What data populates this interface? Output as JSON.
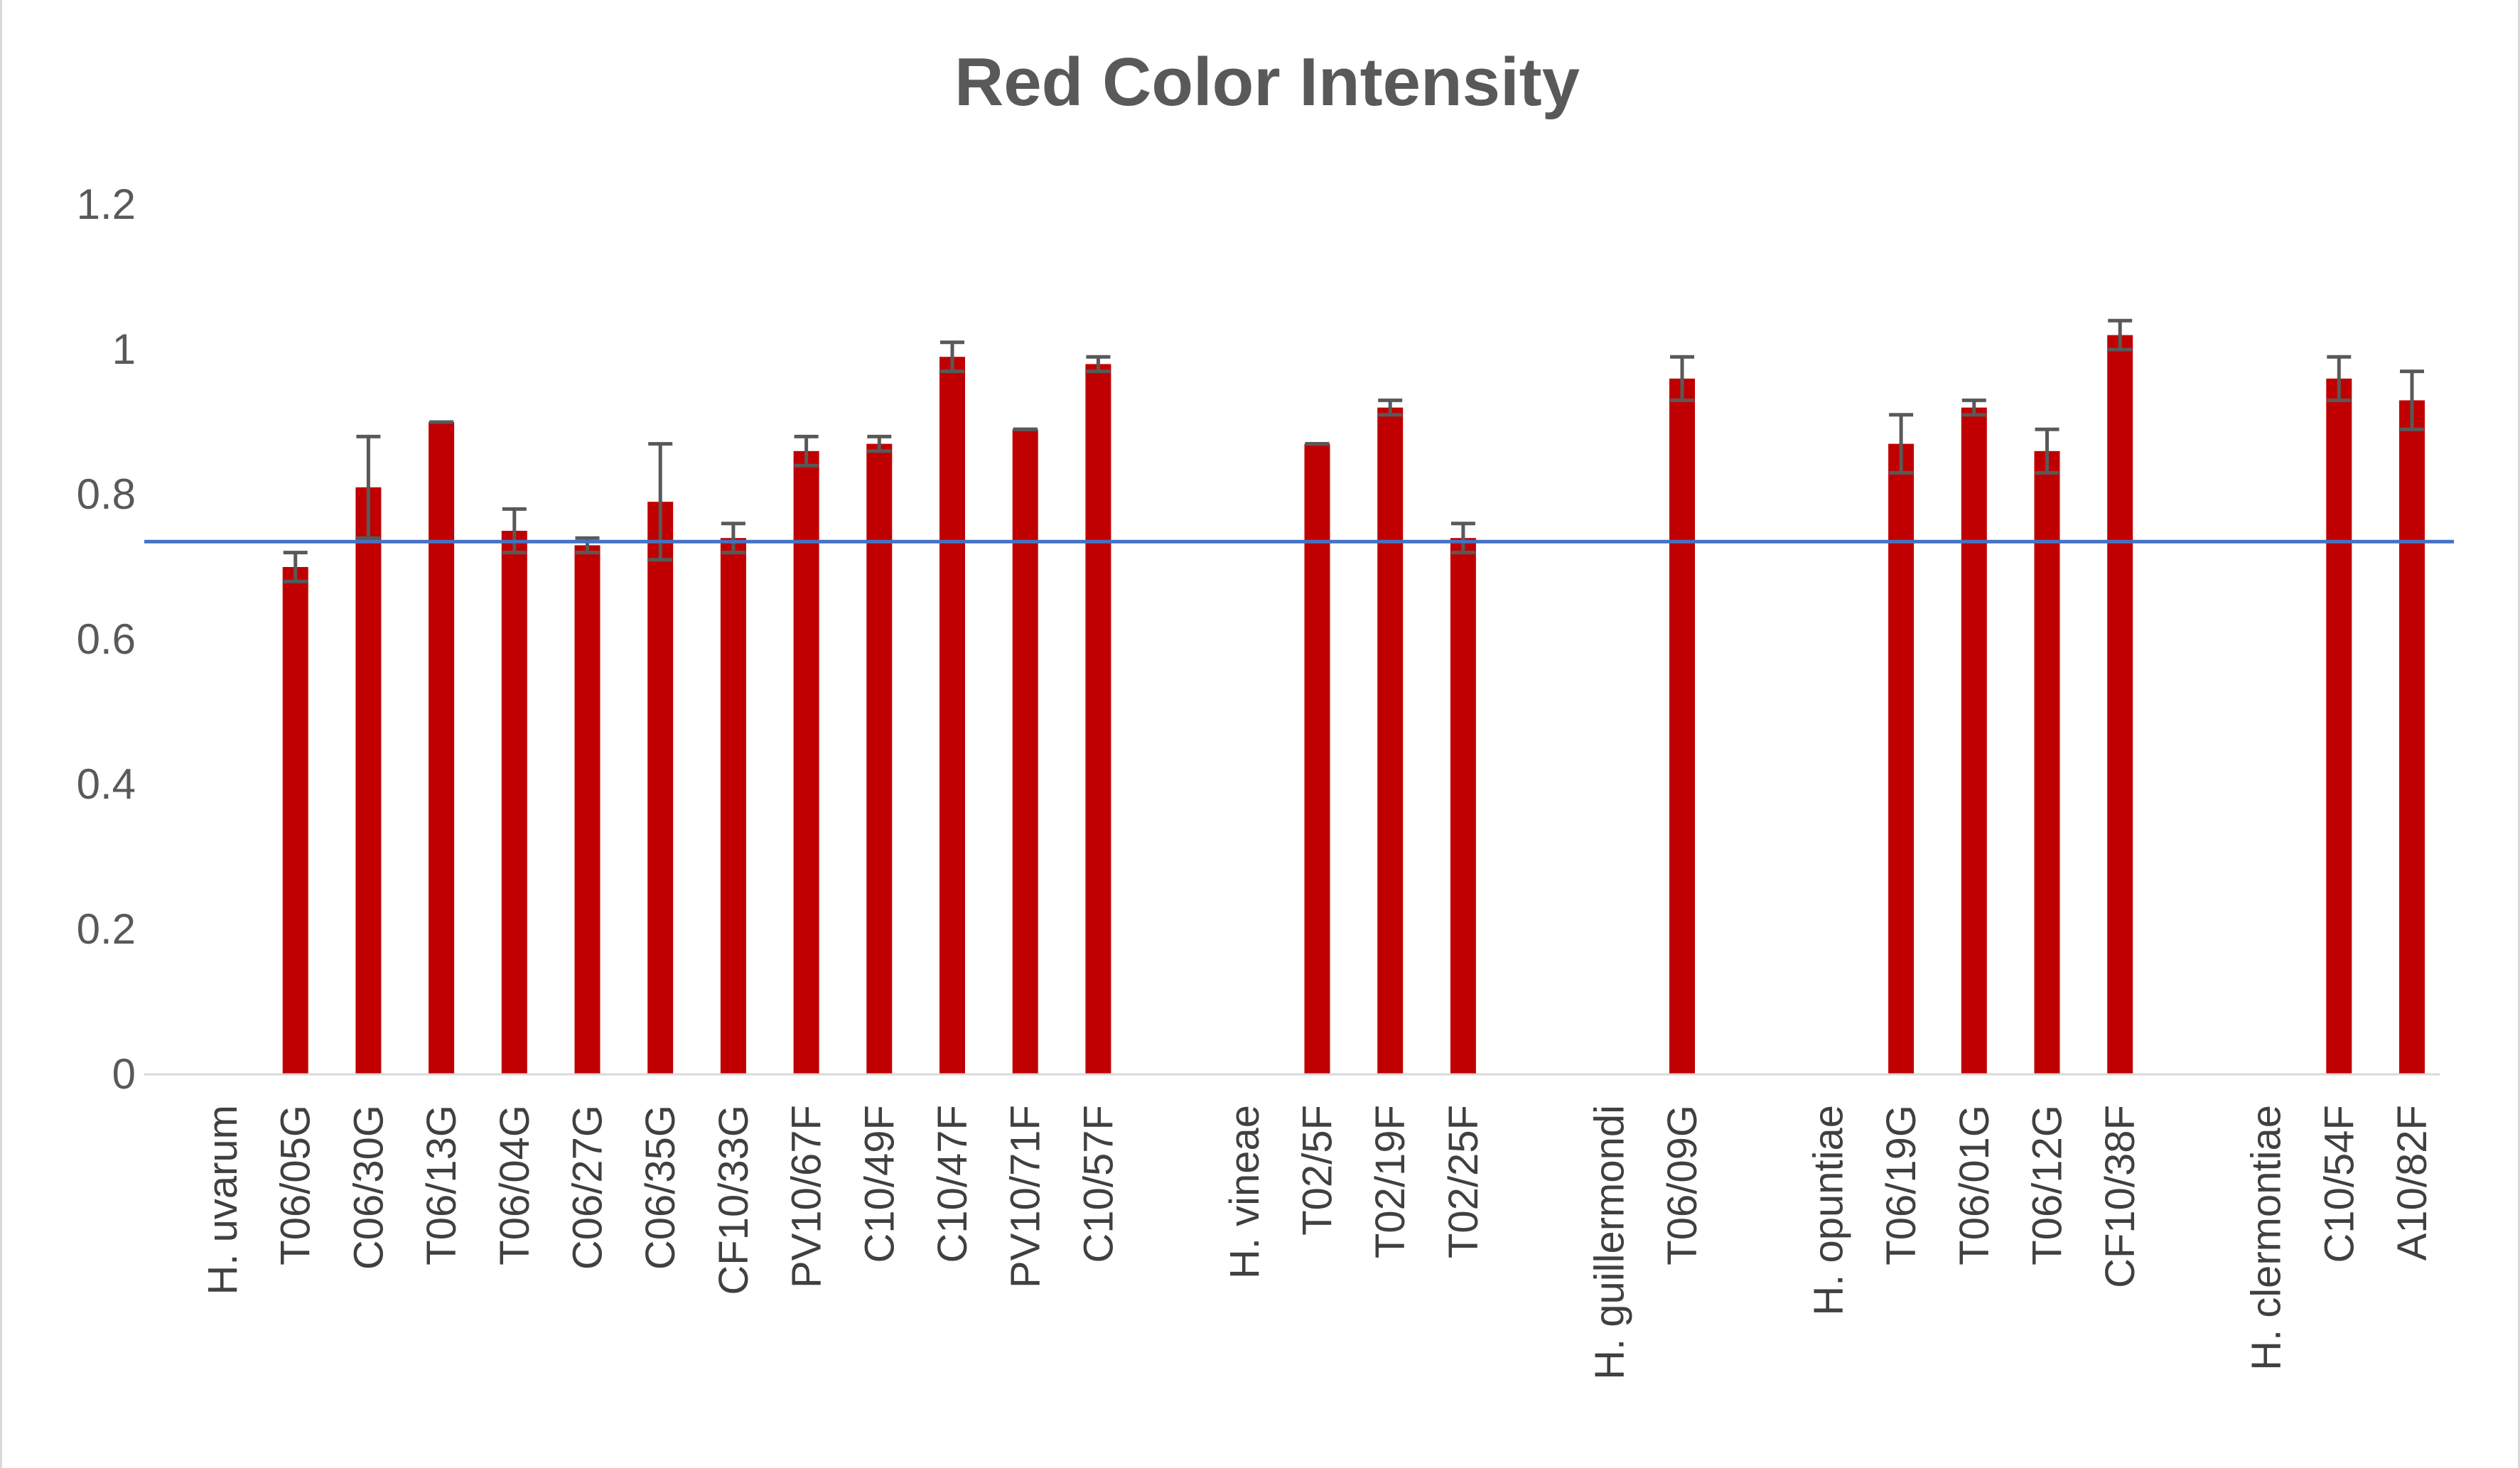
{
  "chart_data": {
    "type": "bar",
    "title": "Red Color Intensity",
    "xlabel": "",
    "ylabel": "",
    "ylim": [
      0,
      1.2
    ],
    "yticks": [
      "0",
      "0.2",
      "0.4",
      "0.6",
      "0.8",
      "1",
      "1.2"
    ],
    "grid": false,
    "legend": "none",
    "bar_color": "#c00000",
    "errorbar_color": "#595959",
    "reference_line": {
      "value": 0.735,
      "color": "#4472c4"
    },
    "categories": [
      "H. uvarum",
      "T06/05G",
      "C06/30G",
      "T06/13G",
      "T06/04G",
      "C06/27G",
      "C06/35G",
      "CF10/33G",
      "PV10/67F",
      "C10/49F",
      "C10/47F",
      "PV10/71F",
      "C10/57F",
      "",
      "H. vineae",
      "T02/5F",
      "T02/19F",
      "T02/25F",
      "",
      "H. guillermondi",
      "T06/09G",
      "",
      "H. opuntiae",
      "T06/19G",
      "T06/01G",
      "T06/12G",
      "CF10/38F",
      "",
      "H. clermontiae",
      "C10/54F",
      "A10/82F"
    ],
    "values": [
      null,
      0.7,
      0.81,
      0.9,
      0.75,
      0.73,
      0.79,
      0.74,
      0.86,
      0.87,
      0.99,
      0.89,
      0.98,
      null,
      null,
      0.87,
      0.92,
      0.74,
      null,
      null,
      0.96,
      null,
      null,
      0.87,
      0.92,
      0.86,
      1.02,
      null,
      null,
      0.96,
      0.93
    ],
    "errors": [
      null,
      0.02,
      0.07,
      0.0,
      0.03,
      0.01,
      0.08,
      0.02,
      0.02,
      0.01,
      0.02,
      0.0,
      0.01,
      null,
      null,
      0.0,
      0.01,
      0.02,
      null,
      null,
      0.03,
      null,
      null,
      0.04,
      0.01,
      0.03,
      0.02,
      null,
      null,
      0.03,
      0.04
    ]
  }
}
